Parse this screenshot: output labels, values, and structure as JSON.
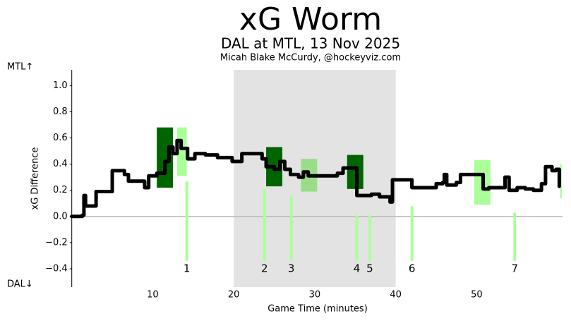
{
  "chart_data": {
    "type": "line",
    "title": "xG Worm",
    "subtitle": "DAL at MTL, 13 Nov 2025",
    "byline": "Micah Blake McCurdy, @hockeyviz.com",
    "x_label": "Game Time (minutes)",
    "y_label": "xG Difference",
    "top_annotation": "MTL↑",
    "bottom_annotation": "DAL↓",
    "xlim": [
      0,
      60.6
    ],
    "ylim": [
      -0.54,
      1.12
    ],
    "xticks": [
      10,
      20,
      30,
      40,
      50
    ],
    "yticks": [
      {
        "value": -0.4,
        "label": "−0.4"
      },
      {
        "value": -0.2,
        "label": "−0.2"
      },
      {
        "value": 0,
        "label": "0.0"
      },
      0.2,
      0.4,
      0.6,
      0.8,
      {
        "value": 1,
        "label": "1.0"
      }
    ],
    "shaded_xrange": [
      20,
      40
    ],
    "shaded_color": "#e3e3e3",
    "zero_line_color": "#bbbbbb",
    "series": [
      {
        "color": "#000000",
        "x": [
          0,
          1.3,
          1.5,
          1.7,
          3,
          5,
          6.5,
          7,
          9,
          9.5,
          10.5,
          11.5,
          12,
          12.5,
          13,
          13.5,
          14.3,
          15.2,
          16.5,
          18,
          19.8,
          21,
          23.5,
          24,
          25,
          25.7,
          26.3,
          27,
          28,
          28.6,
          29.2,
          32.8,
          33.5,
          35.2,
          37,
          38,
          39.3,
          39.6,
          42,
          45,
          45.8,
          46,
          46.3,
          47.5,
          48,
          50.8,
          51.5,
          53.5,
          54,
          55,
          56,
          57,
          58,
          58.5,
          59.3,
          59.8,
          60.2
        ],
        "values": [
          0,
          0.01,
          0.16,
          0.08,
          0.19,
          0.35,
          0.32,
          0.27,
          0.22,
          0.31,
          0.33,
          0.42,
          0.53,
          0.48,
          0.58,
          0.52,
          0.44,
          0.48,
          0.47,
          0.45,
          0.42,
          0.48,
          0.44,
          0.38,
          0.36,
          0.42,
          0.36,
          0.32,
          0.3,
          0.34,
          0.31,
          0.33,
          0.37,
          0.16,
          0.17,
          0.15,
          0.11,
          0.28,
          0.22,
          0.25,
          0.26,
          0.32,
          0.24,
          0.26,
          0.32,
          0.21,
          0.22,
          0.3,
          0.2,
          0.22,
          0.21,
          0.2,
          0.25,
          0.38,
          0.35,
          0.36,
          0.23
        ]
      }
    ],
    "bands": [
      {
        "x0": 10.5,
        "x1": 12.5,
        "low": 0.22,
        "high": 0.68,
        "color": "#006400"
      },
      {
        "x0": 13.0,
        "x1": 14.2,
        "low": 0.31,
        "high": 0.68,
        "color": "#aaff99"
      },
      {
        "x0": 24.0,
        "x1": 26.0,
        "low": 0.23,
        "high": 0.53,
        "color": "#006400"
      },
      {
        "x0": 28.3,
        "x1": 30.3,
        "low": 0.19,
        "high": 0.44,
        "color": "#99dd88"
      },
      {
        "x0": 34.0,
        "x1": 36.0,
        "low": 0.21,
        "high": 0.47,
        "color": "#006400"
      },
      {
        "x0": 49.7,
        "x1": 51.7,
        "low": 0.09,
        "high": 0.43,
        "color": "#aaff99"
      },
      {
        "x0": 60.3,
        "x1": 60.5,
        "low": 0.14,
        "high": 0.4,
        "color": "#aaff99"
      }
    ],
    "events": [
      {
        "x": 14.2,
        "low": -0.33,
        "high": 0.26,
        "label": "1"
      },
      {
        "x": 23.8,
        "low": -0.33,
        "high": 0.2,
        "label": "2"
      },
      {
        "x": 27.1,
        "low": -0.33,
        "high": 0.15,
        "label": "3"
      },
      {
        "x": 35.2,
        "low": -0.33,
        "high": 0.0,
        "label": "4"
      },
      {
        "x": 36.8,
        "low": -0.33,
        "high": 0.0,
        "label": "5"
      },
      {
        "x": 42.0,
        "low": -0.33,
        "high": 0.07,
        "label": "6"
      },
      {
        "x": 54.7,
        "low": -0.33,
        "high": 0.02,
        "label": "7"
      }
    ],
    "event_color": "#aaff99",
    "event_label_y": -0.4
  }
}
